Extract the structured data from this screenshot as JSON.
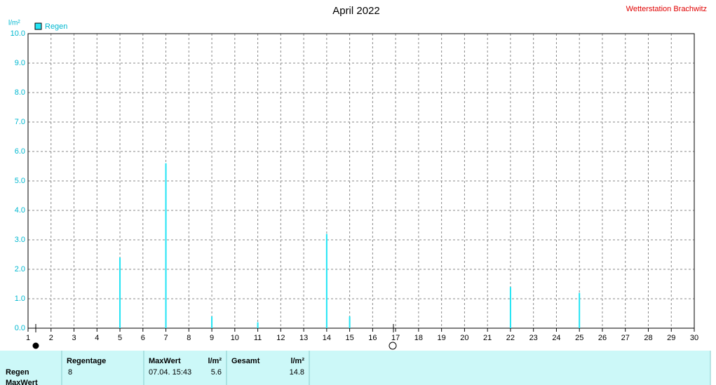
{
  "chart_data": {
    "type": "bar",
    "title": "April 2022",
    "subtitle": "Wetterstation Brachwitz",
    "y_label": "l/m²",
    "x": [
      5,
      7,
      9,
      11,
      14,
      15,
      22,
      25
    ],
    "series": [
      {
        "name": "Regen",
        "color": "#22e4f4",
        "values": [
          2.4,
          5.6,
          0.4,
          0.2,
          3.2,
          0.4,
          1.4,
          1.2
        ]
      }
    ],
    "xlim": [
      1,
      30
    ],
    "xticks": [
      1,
      2,
      3,
      4,
      5,
      6,
      7,
      8,
      9,
      10,
      11,
      12,
      13,
      14,
      15,
      16,
      17,
      18,
      19,
      20,
      21,
      22,
      23,
      24,
      25,
      26,
      27,
      28,
      29,
      30
    ],
    "ylim": [
      0,
      10
    ],
    "yticks": [
      {
        "value": 0,
        "label": "0.0"
      },
      {
        "value": 1,
        "label": "1.0"
      },
      {
        "value": 2,
        "label": "2.0"
      },
      {
        "value": 3,
        "label": "3.0"
      },
      {
        "value": 4,
        "label": "4.0"
      },
      {
        "value": 5,
        "label": "5.0"
      },
      {
        "value": 6,
        "label": "6.0"
      },
      {
        "value": 7,
        "label": "7.0"
      },
      {
        "value": 8,
        "label": "8.0"
      },
      {
        "value": 9,
        "label": "9.0"
      },
      {
        "value": 10,
        "label": "10.0"
      }
    ],
    "grid": true
  },
  "table": {
    "headers": [
      "Regentage",
      "MaxWert",
      "l/m²",
      "Gesamt",
      "l/m²"
    ],
    "row_labels": [
      "Regen",
      "MaxWert"
    ],
    "rows": [
      [
        8,
        "07.04.  15:43",
        5.6,
        14.8
      ]
    ]
  }
}
